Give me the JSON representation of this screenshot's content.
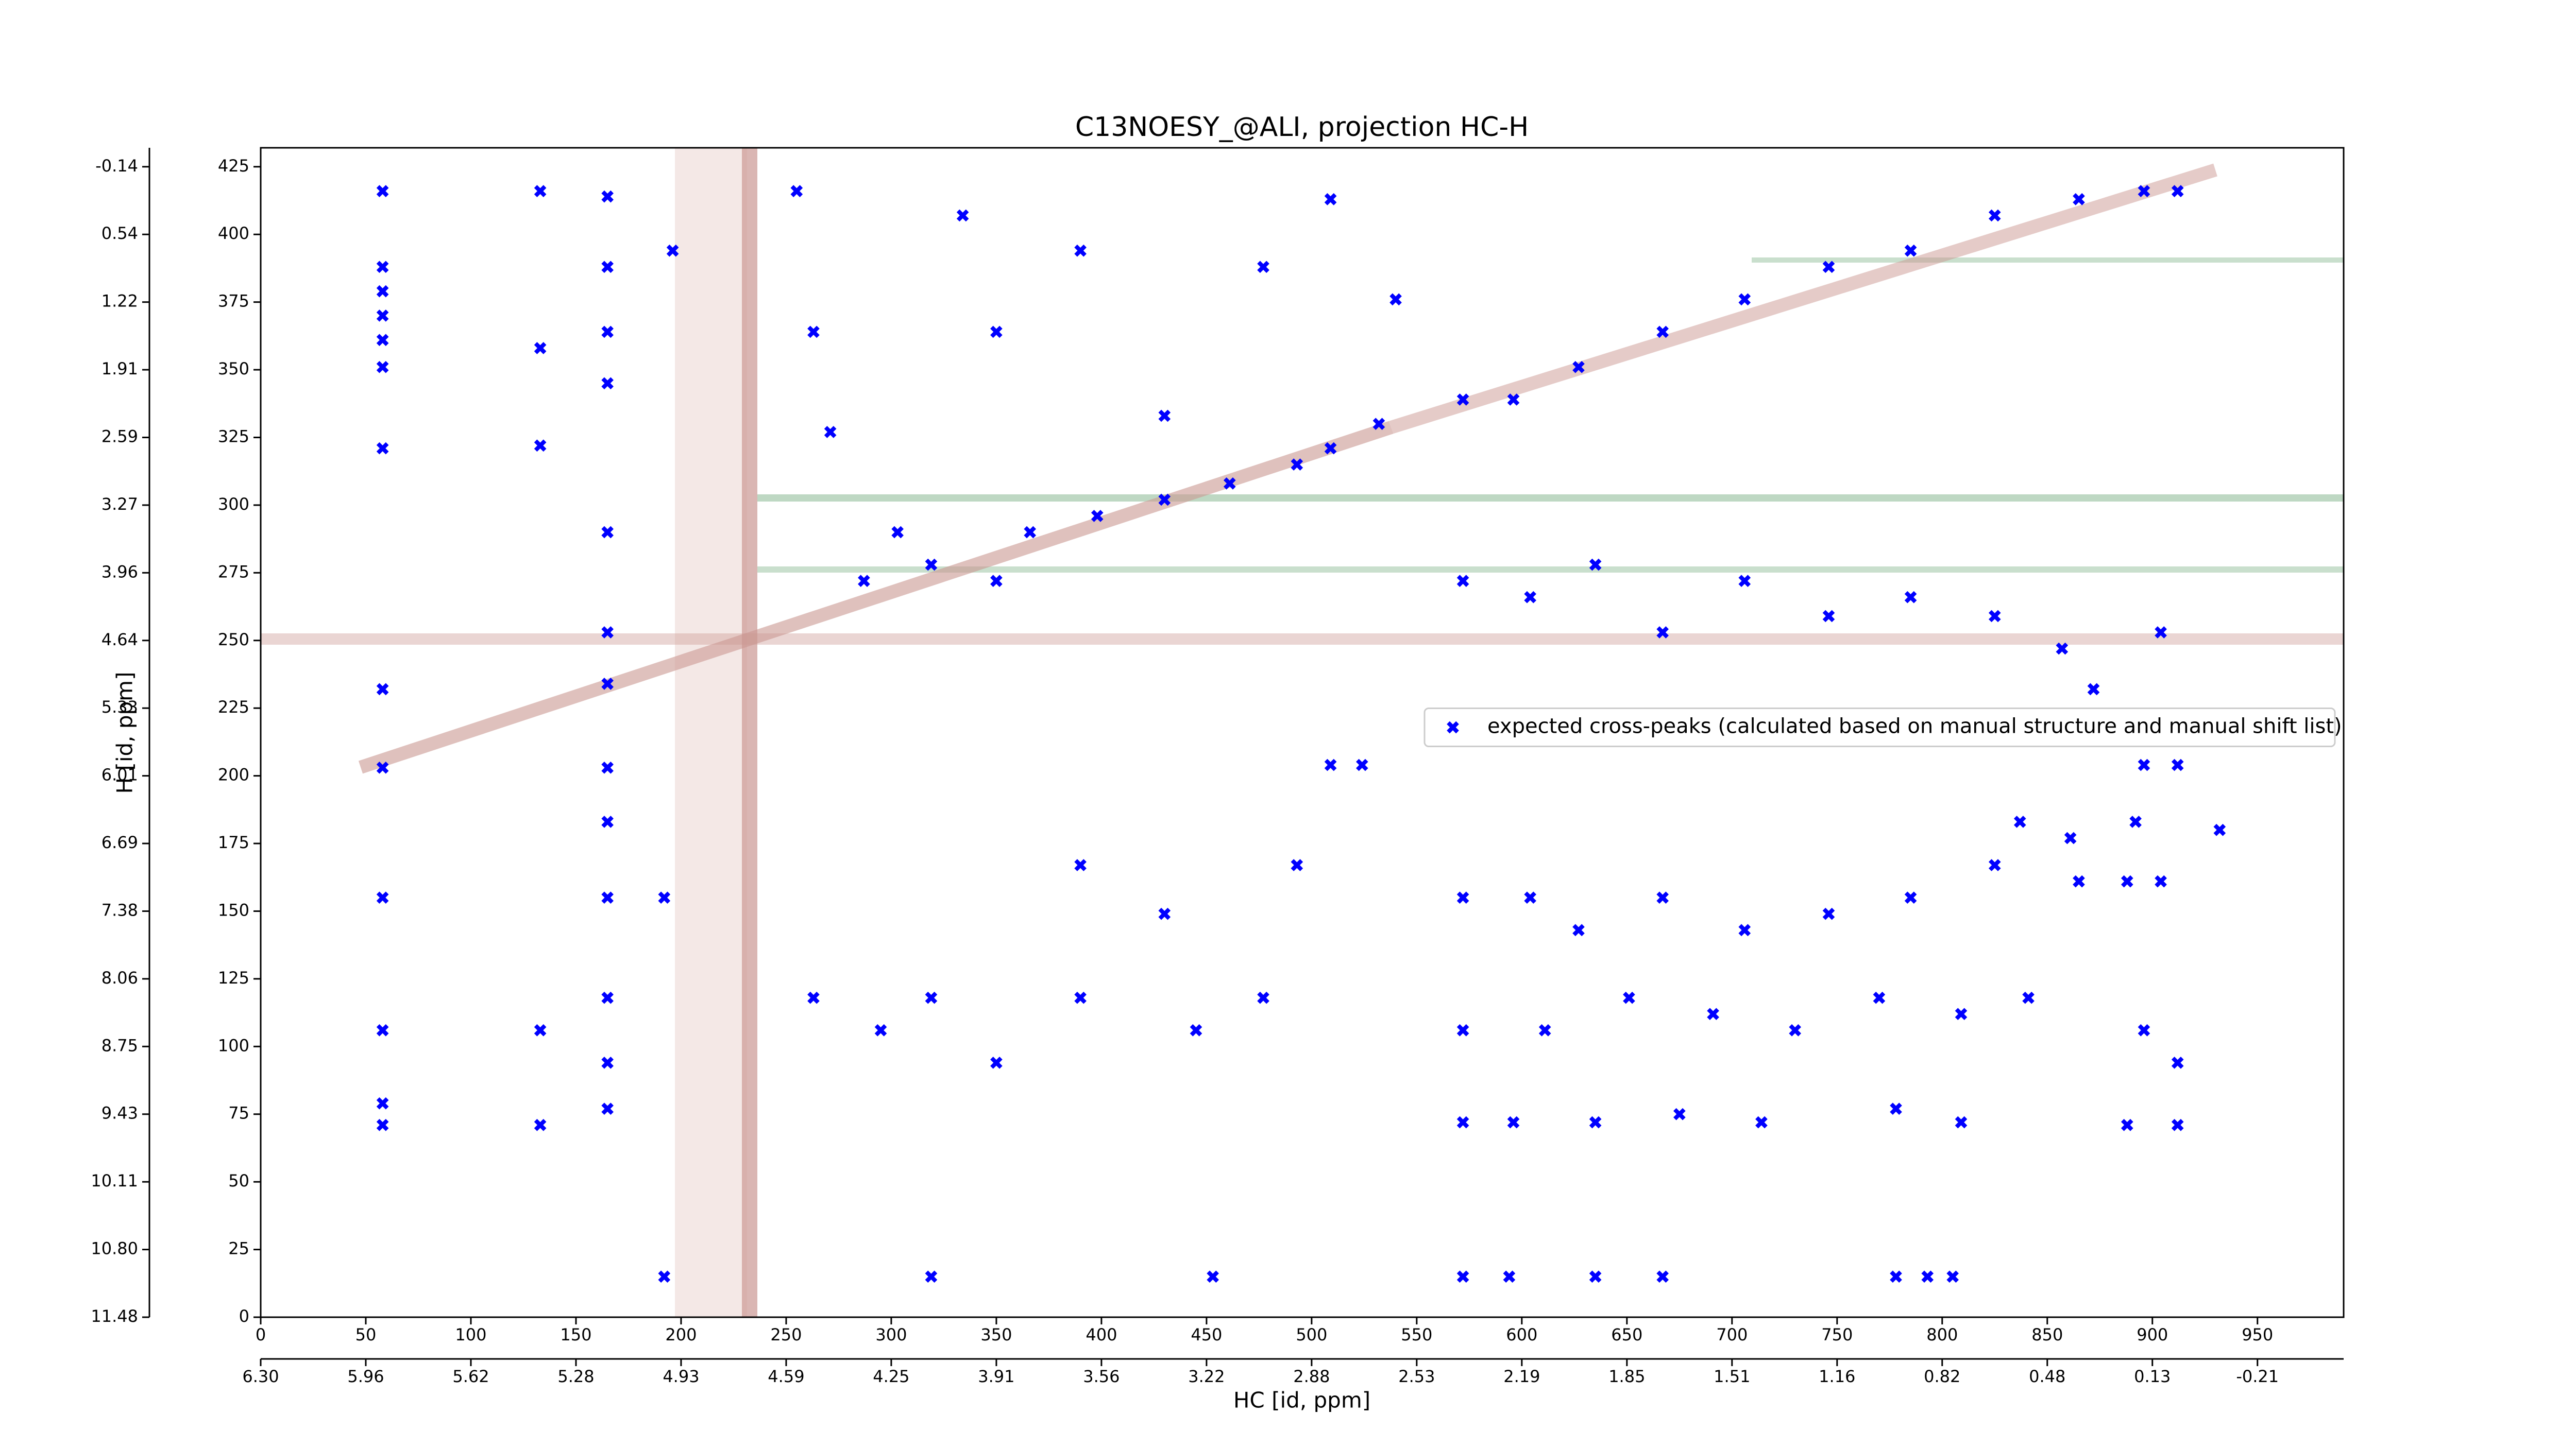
{
  "chart_data": {
    "type": "scatter",
    "title": "C13NOESY_@ALI, projection HC-H",
    "x_label": "HC [id, ppm]",
    "y_label": "H [id, ppm]",
    "xlim": [
      0,
      991
    ],
    "ylim": [
      0,
      432
    ],
    "xticks": [
      0,
      50,
      100,
      150,
      200,
      250,
      300,
      350,
      400,
      450,
      500,
      550,
      600,
      650,
      700,
      750,
      800,
      850,
      900,
      950
    ],
    "yticks": [
      0,
      25,
      50,
      75,
      100,
      125,
      150,
      175,
      200,
      225,
      250,
      275,
      300,
      325,
      350,
      375,
      400,
      425
    ],
    "x2ticks": [
      {
        "value": 0,
        "label": "6.30"
      },
      {
        "value": 50,
        "label": "5.96"
      },
      {
        "value": 100,
        "label": "5.62"
      },
      {
        "value": 150,
        "label": "5.28"
      },
      {
        "value": 200,
        "label": "4.93"
      },
      {
        "value": 250,
        "label": "4.59"
      },
      {
        "value": 300,
        "label": "4.25"
      },
      {
        "value": 350,
        "label": "3.91"
      },
      {
        "value": 400,
        "label": "3.56"
      },
      {
        "value": 450,
        "label": "3.22"
      },
      {
        "value": 500,
        "label": "2.88"
      },
      {
        "value": 550,
        "label": "2.53"
      },
      {
        "value": 600,
        "label": "2.19"
      },
      {
        "value": 650,
        "label": "1.85"
      },
      {
        "value": 700,
        "label": "1.51"
      },
      {
        "value": 750,
        "label": "1.16"
      },
      {
        "value": 800,
        "label": "0.82"
      },
      {
        "value": 850,
        "label": "0.48"
      },
      {
        "value": 900,
        "label": "0.13"
      },
      {
        "value": 950,
        "label": "-0.21"
      }
    ],
    "y2ticks": [
      {
        "value": 0,
        "label": "11.48"
      },
      {
        "value": 25,
        "label": "10.80"
      },
      {
        "value": 50,
        "label": "10.11"
      },
      {
        "value": 75,
        "label": "9.43"
      },
      {
        "value": 100,
        "label": "8.75"
      },
      {
        "value": 125,
        "label": "8.06"
      },
      {
        "value": 150,
        "label": "7.38"
      },
      {
        "value": 175,
        "label": "6.69"
      },
      {
        "value": 200,
        "label": "6.01"
      },
      {
        "value": 225,
        "label": "5.33"
      },
      {
        "value": 250,
        "label": "4.64"
      },
      {
        "value": 275,
        "label": "3.96"
      },
      {
        "value": 300,
        "label": "3.27"
      },
      {
        "value": 325,
        "label": "2.59"
      },
      {
        "value": 350,
        "label": "1.91"
      },
      {
        "value": 375,
        "label": "1.22"
      },
      {
        "value": 400,
        "label": "0.54"
      },
      {
        "value": 425,
        "label": "-0.14"
      }
    ],
    "legend": "center right",
    "series": [
      {
        "name": "expected cross-peaks (calculated based on manual structure and manual shift list)",
        "color": "#0000ff",
        "x": [
          58,
          58,
          58,
          58,
          58,
          58,
          58,
          58,
          58,
          58,
          58,
          58,
          58,
          133,
          133,
          133,
          133,
          133,
          165,
          165,
          165,
          165,
          165,
          165,
          165,
          165,
          165,
          165,
          165,
          165,
          165,
          192,
          196,
          192,
          255,
          263,
          271,
          287,
          303,
          319,
          350,
          366,
          398,
          430,
          461,
          493,
          509,
          532,
          263,
          295,
          319,
          350,
          390,
          390,
          430,
          445,
          477,
          493,
          509,
          524,
          319,
          453,
          572,
          594,
          635,
          667,
          778,
          793,
          805,
          572,
          596,
          627,
          667,
          706,
          746,
          785,
          825,
          865,
          896,
          912,
          572,
          604,
          627,
          667,
          706,
          746,
          785,
          825,
          865,
          888,
          904,
          572,
          611,
          651,
          691,
          730,
          770,
          809,
          841,
          896,
          912,
          572,
          596,
          635,
          675,
          714,
          778,
          809,
          888,
          912,
          572,
          604,
          635,
          667,
          706,
          746,
          785,
          825,
          857,
          872,
          904,
          350,
          390,
          430,
          334,
          509,
          477,
          540,
          837,
          861,
          892,
          932,
          912,
          896
        ],
        "values": [
          416,
          388,
          379,
          370,
          361,
          351,
          321,
          232,
          203,
          155,
          106,
          79,
          71,
          416,
          358,
          322,
          106,
          71,
          414,
          388,
          364,
          345,
          290,
          253,
          234,
          203,
          183,
          155,
          118,
          94,
          77,
          15,
          394,
          155,
          416,
          364,
          327,
          272,
          290,
          278,
          272,
          290,
          296,
          302,
          308,
          315,
          321,
          330,
          118,
          106,
          118,
          94,
          118,
          167,
          149,
          106,
          118,
          167,
          204,
          204,
          15,
          15,
          15,
          15,
          15,
          15,
          15,
          15,
          15,
          339,
          339,
          351,
          364,
          376,
          388,
          394,
          407,
          413,
          416,
          416,
          155,
          155,
          143,
          155,
          143,
          149,
          155,
          167,
          161,
          161,
          161,
          106,
          106,
          118,
          112,
          106,
          118,
          112,
          118,
          106,
          94,
          72,
          72,
          72,
          75,
          72,
          77,
          72,
          71,
          71,
          272,
          266,
          278,
          253,
          272,
          259,
          266,
          259,
          247,
          232,
          253,
          364,
          394,
          333,
          407,
          413,
          388,
          376,
          183,
          177,
          183,
          180,
          204,
          204
        ]
      }
    ]
  }
}
